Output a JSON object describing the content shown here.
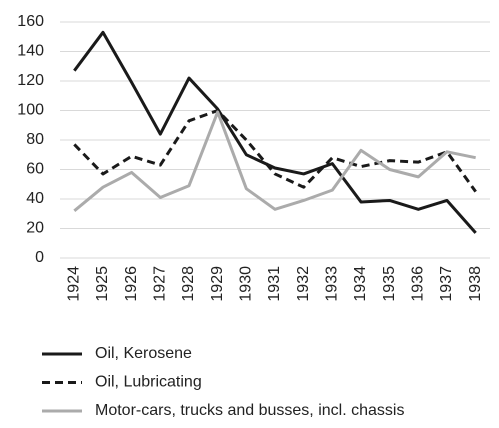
{
  "chart_data": {
    "type": "line",
    "categories": [
      "1924",
      "1925",
      "1926",
      "1927",
      "1928",
      "1929",
      "1930",
      "1931",
      "1932",
      "1933",
      "1934",
      "1935",
      "1936",
      "1937",
      "1938"
    ],
    "series": [
      {
        "name": "Oil, Kerosene",
        "color": "#1a1a1a",
        "dash": "solid",
        "values": [
          127,
          153,
          119,
          84,
          122,
          101,
          70,
          61,
          57,
          64,
          38,
          39,
          33,
          39,
          17
        ]
      },
      {
        "name": "Oil, Lubricating",
        "color": "#1a1a1a",
        "dash": "dashed",
        "values": [
          77,
          57,
          69,
          63,
          93,
          100,
          80,
          57,
          48,
          68,
          62,
          66,
          65,
          72,
          45
        ]
      },
      {
        "name": "Motor-cars, trucks and busses, incl. chassis",
        "color": "#ababab",
        "dash": "solid",
        "values": [
          32,
          48,
          58,
          41,
          49,
          99,
          47,
          33,
          39,
          46,
          73,
          60,
          55,
          72,
          68
        ]
      }
    ],
    "ylim": [
      0,
      160
    ],
    "yticks": [
      0,
      20,
      40,
      60,
      80,
      100,
      120,
      140,
      160
    ],
    "grid": true,
    "legend": "bottom"
  }
}
